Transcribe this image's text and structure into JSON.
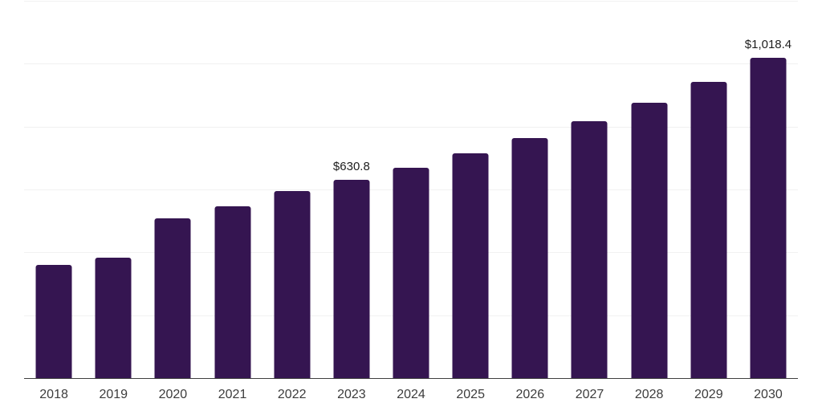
{
  "chart_data": {
    "type": "bar",
    "categories": [
      "2018",
      "2019",
      "2020",
      "2021",
      "2022",
      "2023",
      "2024",
      "2025",
      "2026",
      "2027",
      "2028",
      "2029",
      "2030"
    ],
    "values": [
      360,
      382,
      507,
      547,
      596,
      630.8,
      669,
      716,
      763,
      817,
      876,
      943,
      1018.4
    ],
    "data_labels": [
      "",
      "",
      "",
      "",
      "",
      "$630.8",
      "",
      "",
      "",
      "",
      "",
      "",
      "$1,018.4"
    ],
    "title": "",
    "xlabel": "",
    "ylabel": "",
    "ylim": [
      0,
      1200
    ],
    "grid_interval": 200,
    "grid_visible": true,
    "legend_position": "none",
    "colors": {
      "bar": "#351551",
      "gridline": "#f1f1f1",
      "axis_line": "#3f3f3f",
      "tick_label": "#3c3c3c",
      "data_label": "#1d1d1d",
      "background": "#ffffff"
    }
  }
}
